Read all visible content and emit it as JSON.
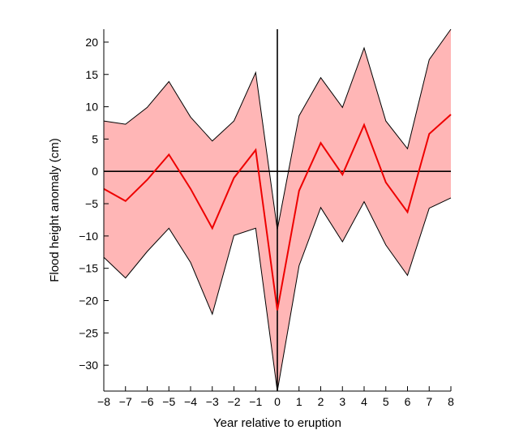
{
  "chart_data": {
    "type": "area",
    "title": "",
    "xlabel": "Year relative to eruption",
    "ylabel": "Flood height anomaly (cm)",
    "xlim": [
      -8,
      8
    ],
    "ylim": [
      -34,
      22
    ],
    "x": [
      -8,
      -7,
      -6,
      -5,
      -4,
      -3,
      -2,
      -1,
      0,
      1,
      2,
      3,
      4,
      5,
      6,
      7,
      8
    ],
    "xticks": [
      -8,
      -7,
      -6,
      -5,
      -4,
      -3,
      -2,
      -1,
      0,
      1,
      2,
      3,
      4,
      5,
      6,
      7,
      8
    ],
    "yticks": [
      20,
      15,
      10,
      5,
      0,
      -5,
      -10,
      -15,
      -20,
      -25,
      -30
    ],
    "xtick_labels": [
      "−8",
      "−7",
      "−6",
      "−5",
      "−4",
      "−3",
      "−2",
      "−1",
      "0",
      "1",
      "2",
      "3",
      "4",
      "5",
      "6",
      "7",
      "8"
    ],
    "ytick_labels": [
      "20",
      "15",
      "10",
      "5",
      "0",
      "−5",
      "−10",
      "−15",
      "−20",
      "−25",
      "−30"
    ],
    "mean": [
      -2.7,
      -4.6,
      -1.3,
      2.6,
      -2.7,
      -8.8,
      -1.0,
      3.3,
      -21.5,
      -3.0,
      4.4,
      -0.5,
      7.2,
      -1.7,
      -6.3,
      5.8,
      8.8
    ],
    "upper": [
      7.8,
      7.3,
      9.9,
      13.9,
      8.4,
      4.7,
      7.8,
      15.3,
      -9.0,
      8.6,
      14.5,
      9.9,
      19.1,
      7.8,
      3.5,
      17.3,
      22.0
    ],
    "lower": [
      -13.3,
      -16.5,
      -12.4,
      -8.8,
      -14.1,
      -22.1,
      -9.9,
      -8.8,
      -34.0,
      -14.6,
      -5.6,
      -10.9,
      -4.7,
      -11.4,
      -16.1,
      -5.7,
      -4.1
    ],
    "colors": {
      "band": "#ffb6b6",
      "band_edge": "#000000",
      "mean_line": "#ee0000",
      "reference_lines": "#000000"
    },
    "grid": false
  }
}
